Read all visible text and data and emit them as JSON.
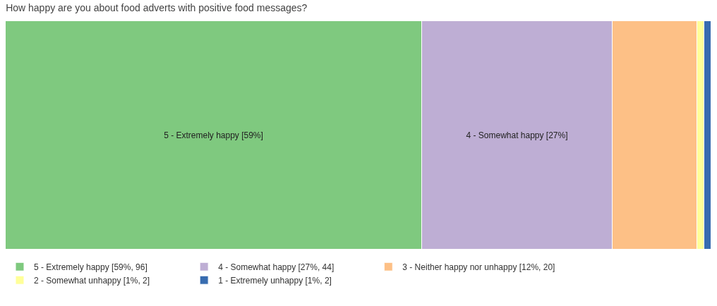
{
  "chart_data": {
    "type": "bar",
    "title": "How happy are you about food adverts with positive food messages?",
    "orientation": "horizontal",
    "stacked": true,
    "categories": [
      null
    ],
    "legend": "bottom",
    "tick_labels": false,
    "series": [
      {
        "name": "5 - Extremely happy [59%, 96]",
        "color": "#7fc97f",
        "values": [
          59
        ],
        "value_labels": [
          "5 - Extremely happy [59%]"
        ]
      },
      {
        "name": "4 - Somewhat happy [27%, 44]",
        "color": "#beaed4",
        "values": [
          27
        ],
        "value_labels": [
          "4 - Somewhat happy [27%]"
        ]
      },
      {
        "name": "3 - Neither happy nor unhappy [12%, 20]",
        "color": "#fdc086",
        "values": [
          12
        ],
        "value_labels": [
          null
        ]
      },
      {
        "name": "2 - Somewhat unhappy [1%, 2]",
        "color": "#ffff99",
        "values": [
          1
        ],
        "value_labels": [
          null
        ]
      },
      {
        "name": "1 - Extremely unhappy [1%, 2]",
        "color": "#386cb0",
        "values": [
          1
        ],
        "value_labels": [
          null
        ]
      }
    ]
  }
}
